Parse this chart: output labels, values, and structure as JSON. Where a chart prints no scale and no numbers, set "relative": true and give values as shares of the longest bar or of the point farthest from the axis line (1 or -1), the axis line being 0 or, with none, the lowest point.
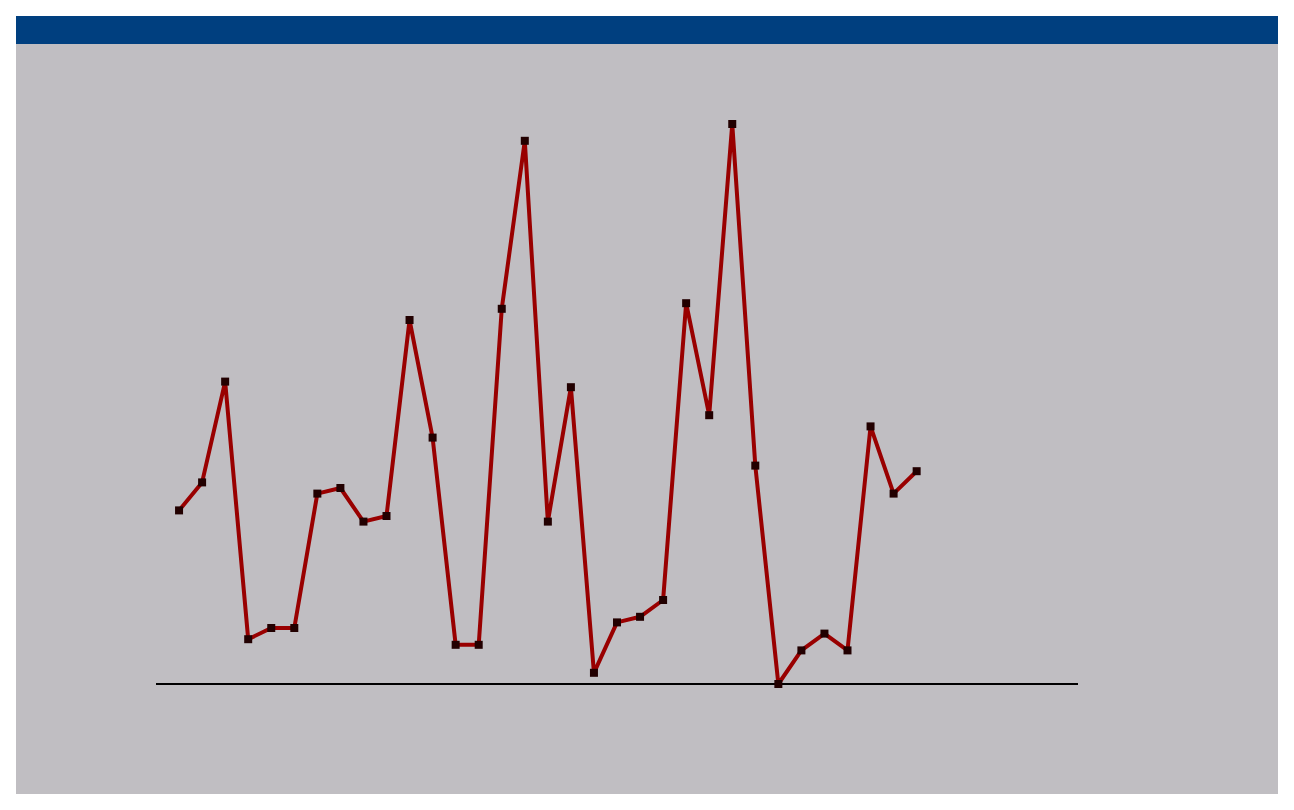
{
  "chart_data": {
    "type": "line",
    "relative": true,
    "grid": false,
    "marker": "square",
    "line_style": "solid",
    "categories": [
      null,
      null,
      null,
      null,
      null,
      null,
      null,
      null,
      null,
      null,
      null,
      null,
      null,
      null,
      null,
      null,
      null,
      null,
      null,
      null,
      null,
      null,
      null,
      null,
      null,
      null,
      null,
      null,
      null,
      null,
      null,
      null,
      null,
      null,
      null,
      null,
      null,
      null,
      null,
      null,
      null
    ],
    "series": [
      {
        "color": "#990000",
        "values": [
          null,
          0.31,
          0.36,
          0.54,
          0.08,
          0.1,
          0.1,
          0.34,
          0.35,
          0.29,
          0.3,
          0.65,
          0.44,
          0.07,
          0.07,
          0.67,
          0.97,
          0.29,
          0.53,
          0.02,
          0.11,
          0.12,
          0.15,
          0.68,
          0.48,
          1,
          0.39,
          0,
          0.06,
          0.09,
          0.06,
          0.46,
          0.34,
          0.38,
          null,
          null,
          null,
          null,
          null,
          null,
          null
        ]
      }
    ]
  }
}
